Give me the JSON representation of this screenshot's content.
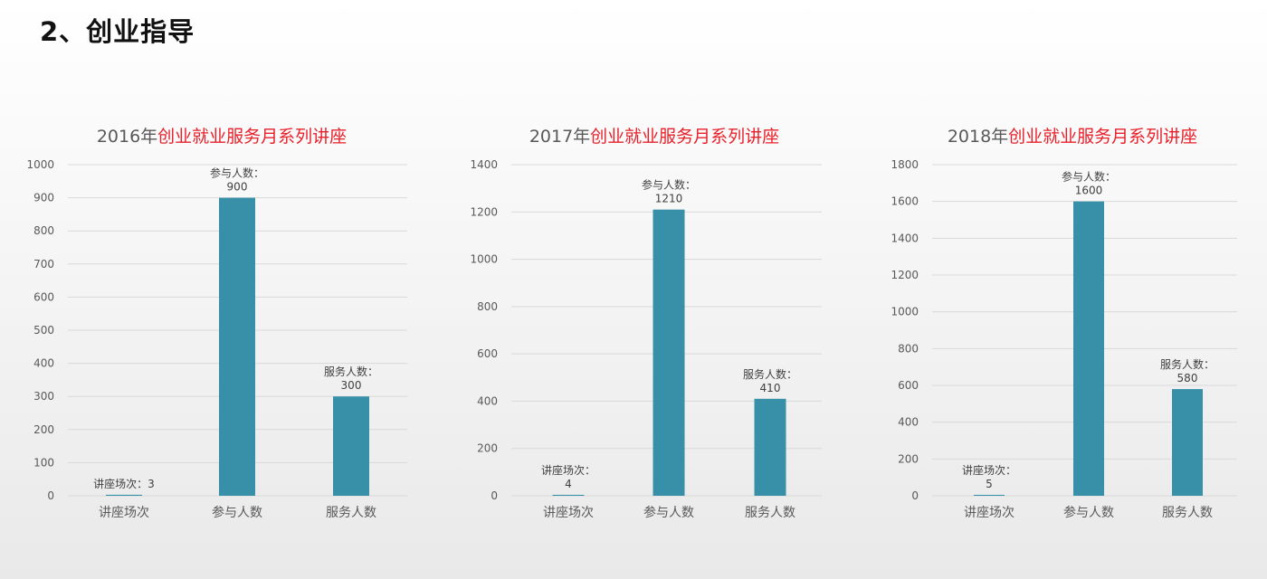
{
  "page": {
    "title": "2、创业指导"
  },
  "colors": {
    "bar": "#3790a8",
    "grid": "#d9d9d9",
    "title_year": "#595959",
    "title_accent": "#e8202a"
  },
  "chart_data": [
    {
      "type": "bar",
      "title": "2016年创业就业服务月系列讲座",
      "title_year": "2016年",
      "title_main": "创业就业服务月系列讲座",
      "categories": [
        "讲座场次",
        "参与人数",
        "服务人数"
      ],
      "values": [
        3,
        900,
        300
      ],
      "data_labels": [
        [
          "讲座场次：3"
        ],
        [
          "参与人数：",
          "900"
        ],
        [
          "服务人数：",
          "300"
        ]
      ],
      "ylim": [
        0,
        1000
      ],
      "yticks": [
        0,
        100,
        200,
        300,
        400,
        500,
        600,
        700,
        800,
        900,
        1000
      ],
      "grid": true
    },
    {
      "type": "bar",
      "title": "2017年创业就业服务月系列讲座",
      "title_year": "2017年",
      "title_main": "创业就业服务月系列讲座",
      "categories": [
        "讲座场次",
        "参与人数",
        "服务人数"
      ],
      "values": [
        4,
        1210,
        410
      ],
      "data_labels": [
        [
          "讲座场次：",
          "4"
        ],
        [
          "参与人数：",
          "1210"
        ],
        [
          "服务人数：",
          "410"
        ]
      ],
      "ylim": [
        0,
        1400
      ],
      "yticks": [
        0,
        200,
        400,
        600,
        800,
        1000,
        1200,
        1400
      ],
      "grid": true
    },
    {
      "type": "bar",
      "title": "2018年创业就业服务月系列讲座",
      "title_year": "2018年",
      "title_main": "创业就业服务月系列讲座",
      "categories": [
        "讲座场次",
        "参与人数",
        "服务人数"
      ],
      "values": [
        5,
        1600,
        580
      ],
      "data_labels": [
        [
          "讲座场次：",
          "5"
        ],
        [
          "参与人数：",
          "1600"
        ],
        [
          "服务人数：",
          "580"
        ]
      ],
      "ylim": [
        0,
        1800
      ],
      "yticks": [
        0,
        200,
        400,
        600,
        800,
        1000,
        1200,
        1400,
        1600,
        1800
      ],
      "grid": true
    }
  ]
}
